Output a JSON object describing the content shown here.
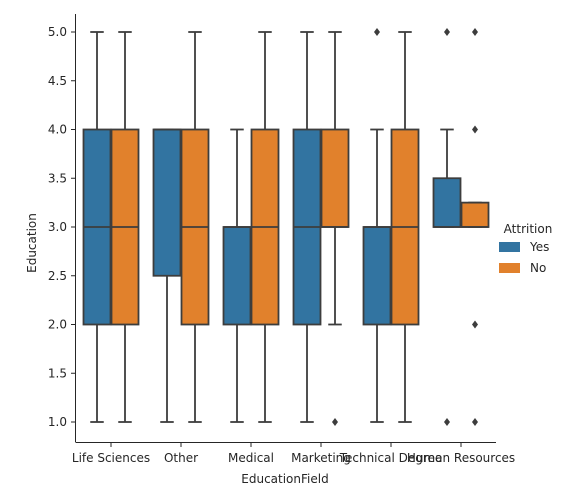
{
  "chart_data": {
    "type": "box",
    "xlabel": "EducationField",
    "ylabel": "Education",
    "ylim": [
      0.85,
      5.2
    ],
    "yticks": [
      1.0,
      1.5,
      2.0,
      2.5,
      3.0,
      3.5,
      4.0,
      4.5,
      5.0
    ],
    "ytick_labels": [
      "1.0",
      "1.5",
      "2.0",
      "2.5",
      "3.0",
      "3.5",
      "4.0",
      "4.5",
      "5.0"
    ],
    "categories": [
      "Life Sciences",
      "Other",
      "Medical",
      "Marketing",
      "Technical Degree",
      "Human Resources"
    ],
    "legend": {
      "title": "Attrition",
      "placement": "right",
      "entries": [
        {
          "name": "Yes",
          "color": "#3274a1"
        },
        {
          "name": "No",
          "color": "#e1812c"
        }
      ]
    },
    "series": [
      {
        "name": "Yes",
        "color": "#3274a1",
        "boxes": [
          {
            "whisker_low": 1,
            "q1": 2,
            "median": 3,
            "q3": 4,
            "whisker_high": 5,
            "outliers": []
          },
          {
            "whisker_low": 1,
            "q1": 2.5,
            "median": 4,
            "q3": 4,
            "whisker_high": 4,
            "outliers": []
          },
          {
            "whisker_low": 1,
            "q1": 2,
            "median": 3,
            "q3": 3,
            "whisker_high": 4,
            "outliers": []
          },
          {
            "whisker_low": 1,
            "q1": 2,
            "median": 3,
            "q3": 4,
            "whisker_high": 5,
            "outliers": []
          },
          {
            "whisker_low": 1,
            "q1": 2,
            "median": 3,
            "q3": 3,
            "whisker_high": 4,
            "outliers": [
              5
            ]
          },
          {
            "whisker_low": 3,
            "q1": 3,
            "median": 3,
            "q3": 3.5,
            "whisker_high": 4,
            "outliers": [
              1,
              5
            ]
          }
        ]
      },
      {
        "name": "No",
        "color": "#e1812c",
        "boxes": [
          {
            "whisker_low": 1,
            "q1": 2,
            "median": 3,
            "q3": 4,
            "whisker_high": 5,
            "outliers": []
          },
          {
            "whisker_low": 1,
            "q1": 2,
            "median": 3,
            "q3": 4,
            "whisker_high": 5,
            "outliers": []
          },
          {
            "whisker_low": 1,
            "q1": 2,
            "median": 3,
            "q3": 4,
            "whisker_high": 5,
            "outliers": []
          },
          {
            "whisker_low": 2,
            "q1": 3,
            "median": 3,
            "q3": 4,
            "whisker_high": 5,
            "outliers": [
              1
            ]
          },
          {
            "whisker_low": 1,
            "q1": 2,
            "median": 3,
            "q3": 4,
            "whisker_high": 5,
            "outliers": []
          },
          {
            "whisker_low": 3,
            "q1": 3,
            "median": 3,
            "q3": 3.25,
            "whisker_high": 3.25,
            "outliers": [
              1,
              2,
              4,
              5
            ]
          }
        ]
      }
    ]
  }
}
